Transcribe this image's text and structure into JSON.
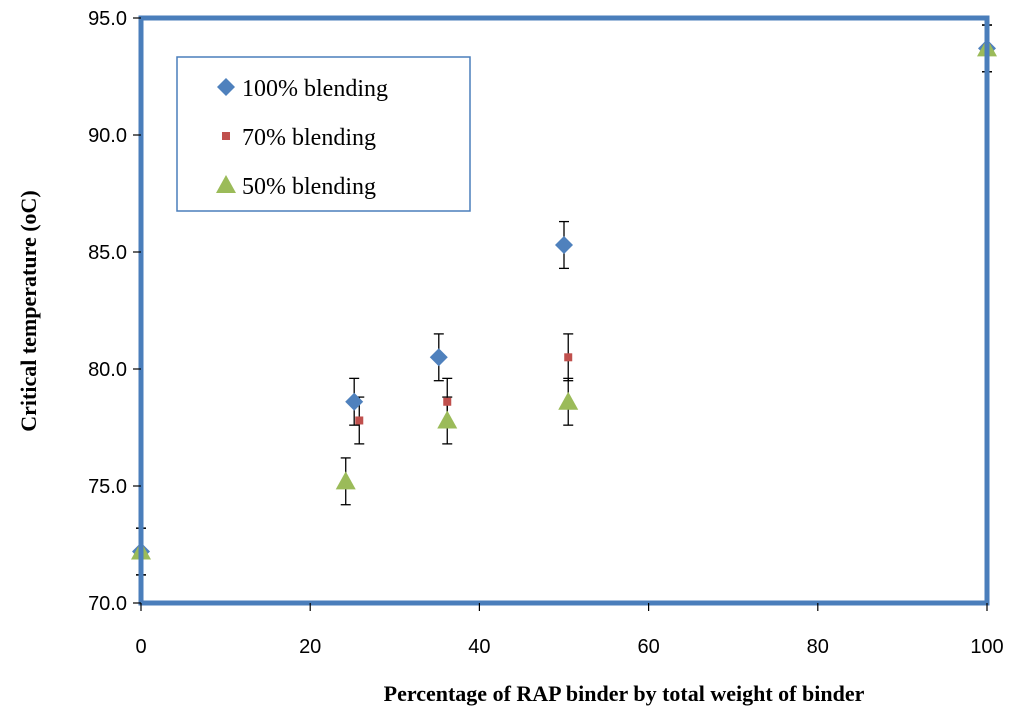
{
  "chart_data": {
    "type": "scatter",
    "title": "",
    "xlabel": "Percentage of RAP binder by total weight of binder",
    "ylabel": "Critical temperature (oC)",
    "xlim": [
      0,
      100
    ],
    "ylim": [
      70,
      95
    ],
    "x_ticks": [
      "0",
      "20",
      "40",
      "60",
      "80",
      "100"
    ],
    "y_ticks": [
      "70.0",
      "75.0",
      "80.0",
      "85.0",
      "90.0",
      "95.0"
    ],
    "grid": false,
    "legend_position": "top-left",
    "colors": {
      "plot_border": "#4a7ebb",
      "legend_border": "#4a7ebb",
      "error_bars": "#000000"
    },
    "series": [
      {
        "name": "100% blending",
        "marker": "diamond",
        "color": "#4f81bd",
        "points": [
          {
            "x": 0,
            "y": 72.2,
            "err": 1.0
          },
          {
            "x": 25.2,
            "y": 78.6,
            "err": 1.0
          },
          {
            "x": 35.2,
            "y": 80.5,
            "err": 1.0
          },
          {
            "x": 50,
            "y": 85.3,
            "err": 1.0
          },
          {
            "x": 100,
            "y": 93.7,
            "err": 1.0
          }
        ]
      },
      {
        "name": "70% blending",
        "marker": "square",
        "color": "#c0504d",
        "points": [
          {
            "x": 0,
            "y": 72.2,
            "err": 1.0
          },
          {
            "x": 25.8,
            "y": 77.8,
            "err": 1.0
          },
          {
            "x": 36.2,
            "y": 78.6,
            "err": 1.0
          },
          {
            "x": 50.5,
            "y": 80.5,
            "err": 1.0
          },
          {
            "x": 100,
            "y": 93.7,
            "err": 1.0
          }
        ]
      },
      {
        "name": "50% blending",
        "marker": "triangle",
        "color": "#9bbb59",
        "points": [
          {
            "x": 0,
            "y": 72.2,
            "err": 1.0
          },
          {
            "x": 24.2,
            "y": 75.2,
            "err": 1.0
          },
          {
            "x": 36.2,
            "y": 77.8,
            "err": 1.0
          },
          {
            "x": 50.5,
            "y": 78.6,
            "err": 1.0
          },
          {
            "x": 100,
            "y": 93.7,
            "err": 1.0
          }
        ]
      }
    ]
  }
}
